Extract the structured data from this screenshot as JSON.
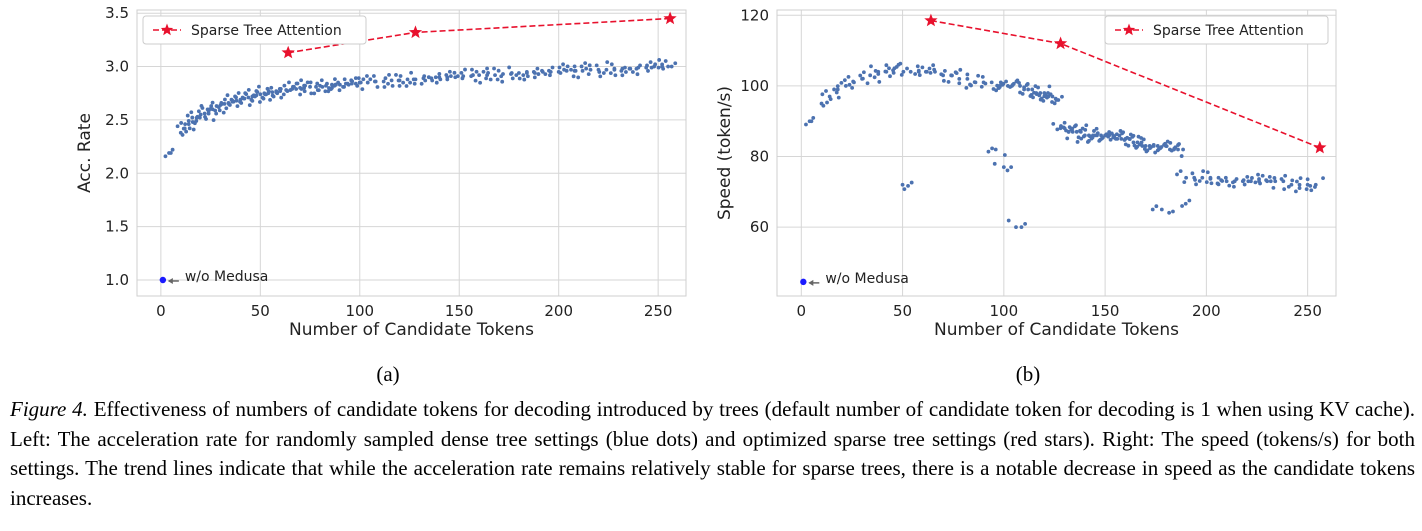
{
  "chart_data": [
    {
      "type": "scatter",
      "panel_label": "(a)",
      "xlabel": "Number of Candidate Tokens",
      "ylabel": "Acc. Rate",
      "xlim": [
        -12,
        264
      ],
      "ylim": [
        0.85,
        3.53
      ],
      "xticks": [
        0,
        50,
        100,
        150,
        200,
        250
      ],
      "yticks": [
        1.0,
        1.5,
        2.0,
        2.5,
        3.0,
        3.5
      ],
      "grid": true,
      "legend_position": "top-left",
      "series": [
        {
          "name": "Sparse Tree Attention",
          "style": "dashed-line-star",
          "color": "#e8112d",
          "x": [
            64,
            128,
            256
          ],
          "y": [
            3.13,
            3.32,
            3.45
          ]
        },
        {
          "style": "dots",
          "color": "#4c72b0",
          "x": [
            5,
            10,
            12,
            14,
            16,
            18,
            20,
            22,
            24,
            26,
            28,
            30,
            32,
            34,
            36,
            38,
            40,
            42,
            44,
            46,
            48,
            50,
            52,
            54,
            56,
            58,
            60,
            63,
            66,
            68,
            70,
            72,
            75,
            78,
            80,
            83,
            86,
            88,
            90,
            93,
            96,
            98,
            100,
            104,
            108,
            112,
            116,
            120,
            124,
            128,
            132,
            136,
            140,
            144,
            148,
            152,
            156,
            160,
            164,
            168,
            172,
            176,
            180,
            184,
            188,
            192,
            196,
            200,
            204,
            208,
            212,
            216,
            220,
            224,
            228,
            232,
            236,
            240,
            244,
            248,
            252,
            255
          ],
          "y": [
            2.19,
            2.38,
            2.42,
            2.46,
            2.48,
            2.52,
            2.55,
            2.56,
            2.58,
            2.6,
            2.63,
            2.64,
            2.65,
            2.66,
            2.67,
            2.68,
            2.69,
            2.7,
            2.71,
            2.72,
            2.73,
            2.74,
            2.75,
            2.75,
            2.76,
            2.77,
            2.77,
            2.78,
            2.79,
            2.79,
            2.8,
            2.8,
            2.81,
            2.81,
            2.82,
            2.82,
            2.83,
            2.83,
            2.83,
            2.84,
            2.84,
            2.84,
            2.85,
            2.85,
            2.86,
            2.86,
            2.87,
            2.87,
            2.88,
            2.88,
            2.89,
            2.89,
            2.9,
            2.9,
            2.9,
            2.91,
            2.91,
            2.92,
            2.92,
            2.92,
            2.93,
            2.93,
            2.94,
            2.94,
            2.94,
            2.95,
            2.95,
            2.95,
            2.96,
            2.96,
            2.96,
            2.97,
            2.97,
            2.97,
            2.98,
            2.98,
            2.98,
            2.99,
            2.99,
            3.0,
            3.0,
            3.0
          ]
        },
        {
          "name": "w/o Medusa",
          "style": "point",
          "color": "#1a1aff",
          "x": [
            1
          ],
          "y": [
            1.0
          ]
        }
      ],
      "annotations": [
        {
          "text": "w/o Medusa",
          "x": 1,
          "y": 1.0
        }
      ]
    },
    {
      "type": "scatter",
      "panel_label": "(b)",
      "xlabel": "Number of Candidate Tokens",
      "ylabel": "Speed (token/s)",
      "xlim": [
        -12,
        264
      ],
      "ylim": [
        40.5,
        121.5
      ],
      "xticks": [
        0,
        50,
        100,
        150,
        200,
        250
      ],
      "yticks": [
        60,
        80,
        100,
        120
      ],
      "grid": true,
      "legend_position": "top-right",
      "series": [
        {
          "name": "Sparse Tree Attention",
          "style": "dashed-line-star",
          "color": "#e8112d",
          "x": [
            64,
            128,
            256
          ],
          "y": [
            118.5,
            112,
            82.5
          ]
        },
        {
          "style": "dots",
          "color": "#4c72b0",
          "x": [
            5,
            10,
            14,
            18,
            22,
            26,
            30,
            34,
            38,
            42,
            46,
            48,
            50,
            54,
            58,
            62,
            66,
            70,
            74,
            78,
            82,
            86,
            90,
            94,
            96,
            98,
            100,
            102,
            104,
            106,
            108,
            110,
            112,
            114,
            116,
            118,
            120,
            122,
            124,
            126,
            128,
            130,
            132,
            134,
            136,
            138,
            140,
            142,
            144,
            146,
            148,
            150,
            152,
            154,
            156,
            158,
            160,
            162,
            164,
            166,
            168,
            170,
            172,
            174,
            176,
            178,
            180,
            182,
            184,
            186,
            188,
            190,
            194,
            198,
            202,
            206,
            210,
            214,
            218,
            222,
            226,
            230,
            234,
            238,
            242,
            246,
            250,
            254
          ],
          "y": [
            90,
            95,
            97,
            99,
            100,
            101,
            102,
            103,
            104,
            104,
            105,
            106,
            72,
            104,
            104,
            104,
            104,
            103,
            103,
            102,
            102,
            101,
            101,
            101,
            82,
            100,
            77,
            100,
            100,
            60,
            100,
            99,
            99,
            99,
            98,
            98,
            98,
            97,
            97,
            96,
            88,
            88,
            87,
            87,
            87,
            87,
            86,
            86,
            86,
            86,
            86,
            86,
            86,
            86,
            85,
            85,
            85,
            85,
            84,
            84,
            84,
            83,
            83,
            83,
            83,
            65,
            83,
            82,
            82,
            82,
            66,
            74,
            74,
            74,
            74,
            74,
            73,
            73,
            73,
            73,
            73,
            73,
            73,
            73,
            72,
            72,
            72,
            72
          ]
        },
        {
          "name": "w/o Medusa",
          "style": "point",
          "color": "#1a1aff",
          "x": [
            1
          ],
          "y": [
            44.5
          ]
        }
      ],
      "annotations": [
        {
          "text": "w/o Medusa",
          "x": 1,
          "y": 44.5
        }
      ]
    }
  ],
  "caption": {
    "label": "Figure 4.",
    "text": " Effectiveness of numbers of candidate tokens for decoding introduced by trees (default number of candidate token for decoding is 1 when using KV cache). Left: The acceleration rate for randomly sampled dense tree settings (blue dots) and optimized sparse tree settings (red stars). Right: The speed (tokens/s) for both settings. The trend lines indicate that while the acceleration rate remains relatively stable for sparse trees, there is a notable decrease in speed as the candidate tokens increases."
  }
}
